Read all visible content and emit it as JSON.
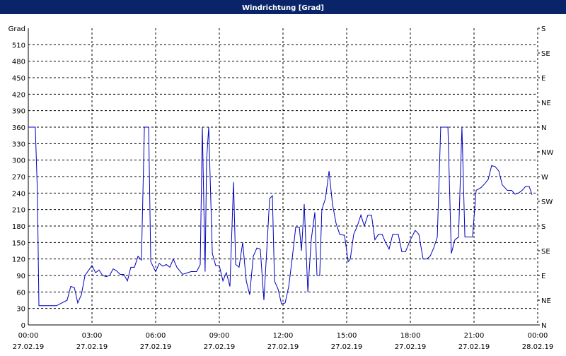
{
  "chart_data": {
    "type": "line",
    "title": "Windrichtung [Grad]",
    "y_label": "Grad",
    "x": [
      0,
      0.33,
      0.43,
      0.5,
      1.33,
      1.83,
      2,
      2.17,
      2.33,
      2.5,
      2.67,
      3,
      3.17,
      3.33,
      3.5,
      3.67,
      3.83,
      4,
      4.17,
      4.33,
      4.5,
      4.67,
      4.83,
      5,
      5.17,
      5.33,
      5.47,
      5.67,
      5.77,
      6,
      6.17,
      6.33,
      6.5,
      6.67,
      6.83,
      7,
      7.27,
      7.5,
      7.67,
      7.93,
      8.1,
      8.2,
      8.33,
      8.4,
      8.5,
      8.67,
      8.83,
      9,
      9.17,
      9.33,
      9.5,
      9.67,
      9.77,
      9.93,
      10.1,
      10.27,
      10.43,
      10.6,
      10.77,
      10.93,
      11.1,
      11.27,
      11.37,
      11.5,
      11.6,
      11.77,
      11.93,
      12.1,
      12.27,
      12.43,
      12.6,
      12.77,
      12.87,
      13,
      13.17,
      13.33,
      13.5,
      13.6,
      13.73,
      13.83,
      14,
      14.17,
      14.33,
      14.5,
      14.67,
      14.9,
      15.07,
      15.17,
      15.33,
      15.5,
      15.67,
      15.83,
      16,
      16.17,
      16.33,
      16.5,
      16.67,
      16.83,
      17,
      17.17,
      17.43,
      17.6,
      17.77,
      18,
      18.23,
      18.4,
      18.6,
      18.77,
      18.93,
      19.1,
      19.27,
      19.43,
      19.6,
      19.77,
      19.93,
      20.1,
      20.27,
      20.43,
      20.57,
      20.77,
      20.93,
      21.1,
      21.33,
      21.53,
      21.67,
      21.83,
      22,
      22.17,
      22.33,
      22.57,
      22.77,
      22.93,
      23.1,
      23.27,
      23.43,
      23.6,
      23.73
    ],
    "series": [
      {
        "color": "#0000c0",
        "values": [
          360,
          360,
          240,
          35,
          35,
          45,
          70,
          68,
          40,
          55,
          90,
          108,
          95,
          100,
          90,
          88,
          90,
          102,
          98,
          92,
          92,
          80,
          105,
          105,
          125,
          118,
          360,
          360,
          115,
          97,
          112,
          107,
          110,
          105,
          120,
          105,
          92,
          95,
          97,
          97,
          110,
          360,
          97,
          300,
          360,
          130,
          108,
          108,
          80,
          95,
          70,
          260,
          110,
          105,
          150,
          80,
          55,
          125,
          140,
          138,
          45,
          160,
          230,
          235,
          80,
          65,
          38,
          40,
          70,
          120,
          178,
          178,
          135,
          220,
          60,
          155,
          205,
          90,
          90,
          210,
          230,
          280,
          220,
          185,
          165,
          163,
          115,
          120,
          165,
          180,
          200,
          180,
          200,
          200,
          155,
          165,
          165,
          150,
          138,
          165,
          165,
          133,
          133,
          155,
          172,
          165,
          120,
          120,
          125,
          140,
          160,
          360,
          360,
          360,
          130,
          155,
          160,
          360,
          160,
          160,
          160,
          245,
          250,
          258,
          265,
          290,
          288,
          280,
          255,
          245,
          245,
          238,
          240,
          245,
          252,
          252,
          237
        ]
      }
    ],
    "xlim": [
      0,
      24
    ],
    "xticks": [
      {
        "value": 0,
        "label": "00:00"
      },
      {
        "value": 3,
        "label": "03:00"
      },
      {
        "value": 6,
        "label": "06:00"
      },
      {
        "value": 9,
        "label": "09:00"
      },
      {
        "value": 12,
        "label": "12:00"
      },
      {
        "value": 15,
        "label": "15:00"
      },
      {
        "value": 18,
        "label": "18:00"
      },
      {
        "value": 21,
        "label": "21:00"
      },
      {
        "value": 24,
        "label": "00:00"
      }
    ],
    "xtick_dates": [
      "27.02.19",
      "27.02.19",
      "27.02.19",
      "27.02.19",
      "27.02.19",
      "27.02.19",
      "27.02.19",
      "27.02.19",
      "28.02.19"
    ],
    "ylim": [
      0,
      540
    ],
    "yticks": [
      0,
      30,
      60,
      90,
      120,
      150,
      180,
      210,
      240,
      270,
      300,
      330,
      360,
      390,
      420,
      450,
      480,
      510
    ],
    "y2lim": [
      0,
      540
    ],
    "y2ticks": [
      {
        "value": 0,
        "label": "N"
      },
      {
        "value": 45,
        "label": "NE"
      },
      {
        "value": 90,
        "label": "E"
      },
      {
        "value": 135,
        "label": "SE"
      },
      {
        "value": 180,
        "label": "S"
      },
      {
        "value": 225,
        "label": "SW"
      },
      {
        "value": 270,
        "label": "W"
      },
      {
        "value": 315,
        "label": "NW"
      },
      {
        "value": 360,
        "label": "N"
      },
      {
        "value": 405,
        "label": "NE"
      },
      {
        "value": 450,
        "label": "E"
      },
      {
        "value": 495,
        "label": "SE"
      },
      {
        "value": 540,
        "label": "S"
      }
    ],
    "grid": true
  }
}
